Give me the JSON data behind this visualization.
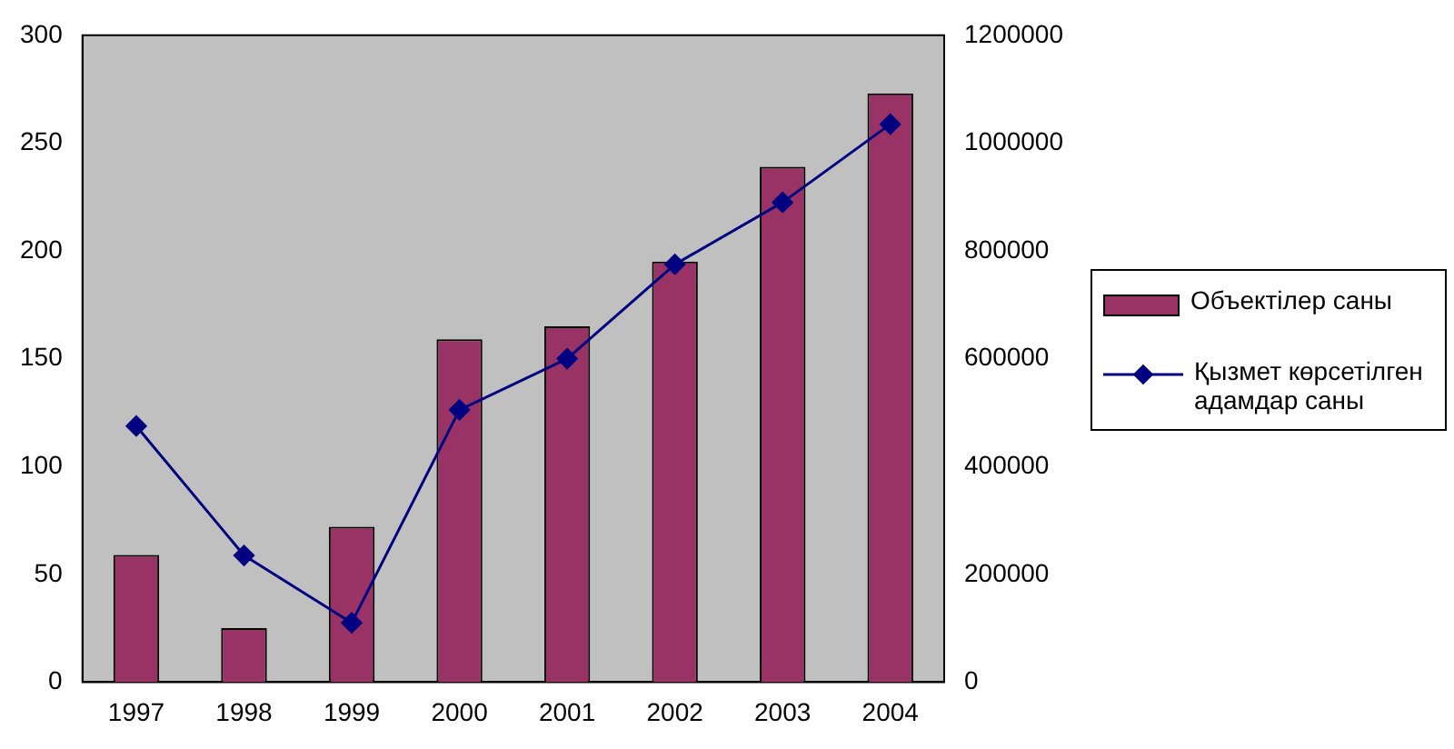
{
  "chart_data": {
    "type": "bar",
    "categories": [
      "1997",
      "1998",
      "1999",
      "2000",
      "2001",
      "2002",
      "2003",
      "2004"
    ],
    "series": [
      {
        "name": "Объектілер саны",
        "color": "#993366",
        "values": [
          59,
          25,
          72,
          159,
          165,
          195,
          239,
          273
        ]
      },
      {
        "name": "Қызмет көрсетілген адамдар саны",
        "type": "line",
        "axis": "y2",
        "color": "#000080",
        "marker": "diamond",
        "values": [
          475000,
          235000,
          110000,
          505000,
          600000,
          775000,
          890000,
          1035000
        ]
      }
    ],
    "ylim": [
      0,
      300
    ],
    "yticks": [
      0,
      50,
      100,
      150,
      200,
      250,
      300
    ],
    "y2lim": [
      0,
      1200000
    ],
    "y2ticks": [
      0,
      200000,
      400000,
      600000,
      800000,
      1000000,
      1200000
    ],
    "grid": false,
    "legend": "right"
  }
}
